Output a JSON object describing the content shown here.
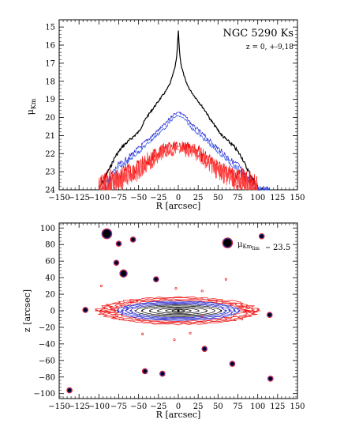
{
  "chart_data": [
    {
      "type": "line",
      "title": "NGC 5290 Ks",
      "subtitle": "z = 0, +-9,18",
      "xlabel": "R [arcsec]",
      "ylabel": "μ",
      "ylabel_sub": "Km",
      "xlim": [
        -150,
        150
      ],
      "ylim": [
        24,
        14.6
      ],
      "y_inverted": true,
      "xticks": [
        "−150",
        "−125",
        "−100",
        "−75",
        "−50",
        "−25",
        "0",
        "25",
        "50",
        "75",
        "100",
        "125",
        "150"
      ],
      "yticks": [
        "15",
        "16",
        "17",
        "18",
        "19",
        "20",
        "21",
        "22",
        "23",
        "24"
      ],
      "series": [
        {
          "color": "#000000",
          "x": [
            -100,
            -95,
            -90,
            -85,
            -80,
            -75,
            -70,
            -65,
            -60,
            -55,
            -50,
            -45,
            -40,
            -35,
            -30,
            -25,
            -20,
            -15,
            -10,
            -8,
            -6,
            -4,
            -2,
            -1,
            0,
            1,
            2,
            4,
            6,
            8,
            10,
            15,
            20,
            25,
            30,
            35,
            40,
            45,
            50,
            55,
            60,
            65,
            70,
            75,
            80,
            85,
            90,
            95,
            100,
            105,
            110
          ],
          "y": [
            24,
            23.5,
            23.1,
            22.7,
            22.2,
            21.9,
            21.6,
            21.4,
            21.2,
            21.0,
            20.8,
            20.4,
            20.0,
            19.7,
            19.4,
            19.1,
            18.8,
            18.5,
            18.1,
            17.8,
            17.5,
            17.2,
            16.6,
            16.0,
            15.1,
            16.0,
            16.6,
            17.2,
            17.5,
            17.8,
            18.1,
            18.5,
            18.8,
            19.1,
            19.4,
            19.7,
            20.1,
            20.4,
            20.7,
            21.0,
            21.2,
            21.4,
            21.6,
            21.9,
            22.2,
            22.7,
            23.1,
            23.5,
            24,
            24,
            24
          ]
        },
        {
          "color": "#2222cc",
          "x": [
            -95,
            -90,
            -85,
            -80,
            -75,
            -70,
            -65,
            -60,
            -55,
            -50,
            -45,
            -40,
            -35,
            -30,
            -25,
            -20,
            -15,
            -10,
            -5,
            0,
            5,
            10,
            15,
            20,
            25,
            30,
            35,
            40,
            45,
            50,
            55,
            60,
            65,
            70,
            75,
            80,
            85,
            90,
            95,
            100,
            105,
            110,
            115
          ],
          "y": [
            24,
            23.6,
            23.2,
            22.9,
            22.6,
            22.5,
            22.3,
            22.1,
            21.9,
            21.7,
            21.5,
            21.3,
            21.1,
            20.9,
            20.7,
            20.5,
            20.3,
            20.0,
            19.8,
            19.7,
            19.8,
            20.0,
            20.3,
            20.5,
            20.7,
            20.9,
            21.1,
            21.3,
            21.5,
            21.7,
            21.9,
            22.1,
            22.3,
            22.5,
            22.6,
            22.9,
            23.2,
            23.4,
            23.6,
            23.8,
            24,
            24,
            24
          ]
        },
        {
          "color": "#3355ee",
          "x": [
            -95,
            -90,
            -85,
            -80,
            -75,
            -70,
            -65,
            -60,
            -55,
            -50,
            -45,
            -40,
            -35,
            -30,
            -25,
            -20,
            -15,
            -10,
            -5,
            0,
            5,
            10,
            15,
            20,
            25,
            30,
            35,
            40,
            45,
            50,
            55,
            60,
            65,
            70,
            75,
            80,
            85,
            90,
            95,
            100,
            105,
            110,
            115
          ],
          "y": [
            24,
            23.8,
            23.4,
            23.1,
            22.8,
            22.7,
            22.5,
            22.3,
            22.1,
            21.9,
            21.7,
            21.5,
            21.3,
            21.1,
            20.9,
            20.7,
            20.5,
            20.2,
            20.0,
            19.9,
            20.0,
            20.2,
            20.5,
            20.7,
            20.9,
            21.1,
            21.3,
            21.5,
            21.7,
            21.9,
            22.1,
            22.3,
            22.5,
            22.7,
            22.8,
            23.1,
            23.4,
            23.6,
            23.8,
            24,
            24,
            24,
            24
          ]
        },
        {
          "color": "#ee1111",
          "x": [
            -100,
            -90,
            -80,
            -70,
            -65,
            -60,
            -55,
            -50,
            -45,
            -40,
            -35,
            -30,
            -25,
            -20,
            -15,
            -10,
            -5,
            0,
            5,
            10,
            15,
            20,
            25,
            30,
            35,
            40,
            45,
            50,
            55,
            60,
            65,
            70,
            80,
            90,
            100
          ],
          "y": [
            24,
            23.6,
            23.4,
            23.3,
            23.1,
            23.0,
            22.9,
            22.8,
            22.6,
            22.4,
            22.3,
            22.1,
            21.9,
            21.8,
            21.7,
            21.7,
            21.6,
            21.6,
            21.6,
            21.7,
            21.7,
            21.8,
            21.9,
            22.1,
            22.3,
            22.4,
            22.6,
            22.8,
            22.9,
            23.0,
            23.1,
            23.3,
            23.4,
            23.6,
            24
          ]
        },
        {
          "color": "#ff4444",
          "x": [
            -100,
            -90,
            -80,
            -70,
            -65,
            -60,
            -55,
            -50,
            -45,
            -40,
            -35,
            -30,
            -25,
            -20,
            -15,
            -10,
            -5,
            0,
            5,
            10,
            15,
            20,
            25,
            30,
            35,
            40,
            45,
            50,
            55,
            60,
            65,
            70,
            80,
            90,
            100
          ],
          "y": [
            24,
            23.8,
            23.6,
            23.5,
            23.3,
            23.2,
            23.1,
            23.0,
            22.8,
            22.6,
            22.5,
            22.3,
            22.1,
            22.0,
            21.9,
            21.9,
            21.8,
            21.8,
            21.8,
            21.9,
            21.9,
            22.0,
            22.1,
            22.3,
            22.5,
            22.6,
            22.8,
            23.0,
            23.1,
            23.2,
            23.3,
            23.5,
            23.6,
            23.8,
            24
          ]
        }
      ]
    },
    {
      "type": "contour",
      "xlabel": "R [arcsec]",
      "ylabel": "z [arcsec]",
      "xlim": [
        -150,
        150
      ],
      "ylim": [
        -106,
        106
      ],
      "xticks": [
        "−150",
        "−125",
        "−100",
        "−75",
        "−50",
        "−25",
        "0",
        "25",
        "50",
        "75",
        "100",
        "125",
        "150"
      ],
      "yticks": [
        "100",
        "80",
        "60",
        "40",
        "20",
        "0",
        "−20",
        "−40",
        "−60",
        "−80",
        "−100"
      ],
      "annotation_label": "μ",
      "annotation_sub": "Km",
      "annotation_subsub": "lim",
      "annotation_value": "23.5",
      "contours": [
        {
          "color": "#000000",
          "a": 8,
          "b": 1.2
        },
        {
          "color": "#000000",
          "a": 16,
          "b": 2.0
        },
        {
          "color": "#000000",
          "a": 26,
          "b": 3.2
        },
        {
          "color": "#000000",
          "a": 36,
          "b": 4.5
        },
        {
          "color": "#000000",
          "a": 46,
          "b": 5.8
        },
        {
          "color": "#000000",
          "a": 54,
          "b": 7.0
        },
        {
          "color": "#2222cc",
          "a": 60,
          "b": 8.2
        },
        {
          "color": "#2222cc",
          "a": 66,
          "b": 9.2
        },
        {
          "color": "#2222cc",
          "a": 71,
          "b": 10.4
        },
        {
          "color": "#2222cc",
          "a": 76,
          "b": 11.5
        },
        {
          "color": "#ee1111",
          "a": 82,
          "b": 12.6
        },
        {
          "color": "#ee1111",
          "a": 88,
          "b": 13.8
        },
        {
          "color": "#ee1111",
          "a": 94,
          "b": 15.0
        },
        {
          "color": "#ee1111",
          "a": 100,
          "b": 16.2
        }
      ],
      "stars": [
        {
          "x": -90,
          "y": 93,
          "size": 3
        },
        {
          "x": 62,
          "y": 82,
          "size": 3
        },
        {
          "x": -69,
          "y": 45,
          "size": 2
        },
        {
          "x": -75,
          "y": 81,
          "size": 1
        },
        {
          "x": -57,
          "y": 86,
          "size": 1
        },
        {
          "x": -78,
          "y": 58,
          "size": 1
        },
        {
          "x": -28,
          "y": 38,
          "size": 1
        },
        {
          "x": -117,
          "y": 1,
          "size": 1
        },
        {
          "x": 115,
          "y": -5,
          "size": 1
        },
        {
          "x": 105,
          "y": 90,
          "size": 1
        },
        {
          "x": -42,
          "y": -73,
          "size": 1
        },
        {
          "x": -20,
          "y": -76,
          "size": 1
        },
        {
          "x": 33,
          "y": -46,
          "size": 1
        },
        {
          "x": 68,
          "y": -64,
          "size": 1
        },
        {
          "x": -137,
          "y": -96,
          "size": 1
        },
        {
          "x": 116,
          "y": -82,
          "size": 1
        },
        {
          "x": -52,
          "y": 12,
          "size": 0
        },
        {
          "x": -3,
          "y": 27,
          "size": 0
        },
        {
          "x": 30,
          "y": 24,
          "size": 0
        },
        {
          "x": 60,
          "y": 38,
          "size": 0
        },
        {
          "x": -97,
          "y": 30,
          "size": 0
        },
        {
          "x": 30,
          "y": -7,
          "size": 0
        },
        {
          "x": -5,
          "y": -35,
          "size": 0
        },
        {
          "x": 15,
          "y": -27,
          "size": 0
        },
        {
          "x": 80,
          "y": -10,
          "size": 0
        },
        {
          "x": -45,
          "y": -28,
          "size": 0
        }
      ]
    }
  ]
}
